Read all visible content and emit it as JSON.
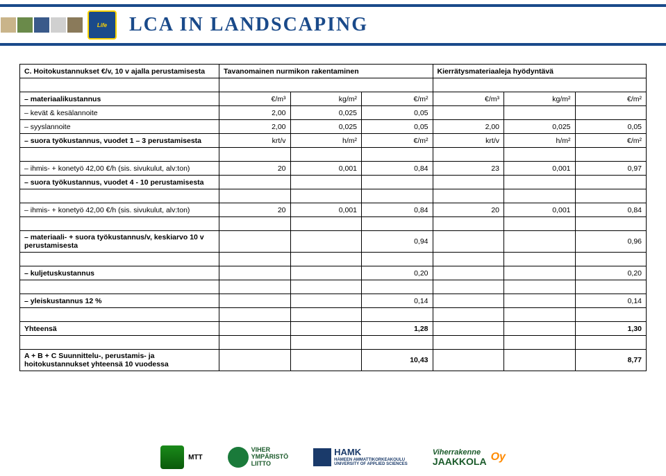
{
  "header": {
    "badge_label": "Life",
    "title": "LCA IN LANDSCAPING"
  },
  "table": {
    "section_c": {
      "title": "C. Hoitokustannukset €/v, 10 v ajalla perustamisesta",
      "col_group_a": "Tavanomainen nurmikon rakentaminen",
      "col_group_b": "Kierrätysmateriaaleja hyödyntävä"
    },
    "rows": {
      "materiaalikustannus": {
        "label": "– materiaalikustannus",
        "u1": "€/m³",
        "u2": "kg/m²",
        "u3": "€/m²",
        "u4": "€/m³",
        "u5": "kg/m²",
        "u6": "€/m²"
      },
      "kevat": {
        "label": "– kevät & kesälannoite",
        "v1": "2,00",
        "v2": "0,025",
        "v3": "0,05",
        "v4": "",
        "v5": "",
        "v6": ""
      },
      "syys": {
        "label": "– syyslannoite",
        "v1": "2,00",
        "v2": "0,025",
        "v3": "0,05",
        "v4": "2,00",
        "v5": "0,025",
        "v6": "0,05"
      },
      "suora13": {
        "label": "– suora työkustannus, vuodet 1 – 3 perustamisesta",
        "u1": "krt/v",
        "u2": "h/m²",
        "u3": "€/m²",
        "u4": "krt/v",
        "u5": "h/m²",
        "u6": "€/m²"
      },
      "ihmis1": {
        "label": "– ihmis- + konetyö 42,00 €/h (sis. sivukulut, alv:ton)",
        "v1": "20",
        "v2": "0,001",
        "v3": "0,84",
        "v4": "23",
        "v5": "0,001",
        "v6": "0,97"
      },
      "suora410": {
        "label": "– suora työkustannus, vuodet 4 - 10 perustamisesta"
      },
      "ihmis2": {
        "label": "– ihmis- + konetyö 42,00 €/h (sis. sivukulut, alv:ton)",
        "v1": "20",
        "v2": "0,001",
        "v3": "0,84",
        "v4": "20",
        "v5": "0,001",
        "v6": "0,84"
      },
      "mat_suora": {
        "label": "– materiaali- + suora työkustannus/v, keskiarvo 10 v perustamisesta",
        "v3": "0,94",
        "v6": "0,96"
      },
      "kuljetus": {
        "label": "– kuljetuskustannus",
        "v3": "0,20",
        "v6": "0,20"
      },
      "yleis": {
        "label": "– yleiskustannus 12 %",
        "v3": "0,14",
        "v6": "0,14"
      },
      "yhteensa": {
        "label": "Yhteensä",
        "v3": "1,28",
        "v6": "1,30"
      },
      "abc": {
        "label": "A + B + C Suunnittelu-, perustamis- ja hoitokustannukset yhteensä 10 vuodessa",
        "v3": "10,43",
        "v6": "8,77"
      }
    }
  },
  "footer": {
    "mtt": "MTT",
    "viher1": "VIHER",
    "viher2": "YMPÄRISTÖ",
    "viher3": "LIITTO",
    "hamk1": "HAMK",
    "hamk2": "HÄMEEN AMMATTIKORKEAKOULU",
    "hamk3": "UNIVERSITY OF APPLIED SCIENCES",
    "jaak1": "Viherrakenne",
    "jaak2": "JAAKKOLA",
    "jaak_oy": "Oy"
  },
  "colors": {
    "header_stripe": "#1a4a8a",
    "table_border": "#000000",
    "background": "#ffffff"
  }
}
